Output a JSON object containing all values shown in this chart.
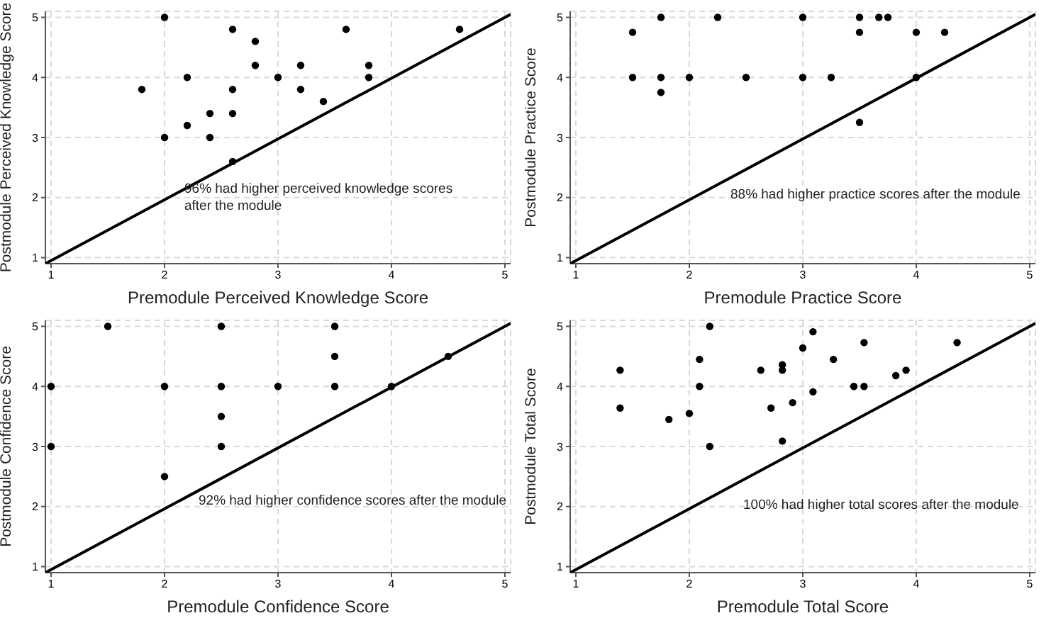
{
  "chart_data": [
    {
      "type": "scatter",
      "xlabel": "Premodule Perceived Knowledge Score",
      "ylabel": "Postmodule Perceived Knowledge Score",
      "xlim": [
        0.95,
        5.05
      ],
      "ylim": [
        0.9,
        5.1
      ],
      "xticks": [
        1,
        2,
        3,
        4,
        5
      ],
      "yticks": [
        1,
        2,
        3,
        4,
        5
      ],
      "grid": true,
      "annotations": [
        "96% had higher perceived knowledge scores after the module"
      ],
      "series": [
        {
          "marker": "circle",
          "color": "#000000",
          "x": [
            1.8,
            2,
            2,
            2.2,
            2.2,
            2.4,
            2.4,
            2.6,
            2.6,
            2.6,
            2.6,
            2.8,
            2.8,
            3,
            3.2,
            3.2,
            3.4,
            3.6,
            3.8,
            3.8,
            4.6
          ],
          "values": [
            3.8,
            5,
            3,
            4,
            3.2,
            3.4,
            3,
            4.8,
            3.8,
            3.4,
            2.6,
            4.6,
            4.2,
            4,
            4.2,
            3.8,
            3.6,
            4.8,
            4.2,
            4,
            4.8
          ]
        },
        {
          "type": "line",
          "color": "#000000",
          "x": [
            0.95,
            5.05
          ],
          "values": [
            0.9,
            5.05
          ]
        }
      ]
    },
    {
      "type": "scatter",
      "xlabel": "Premodule Practice Score",
      "ylabel": "Postmodule Practice Score",
      "xlim": [
        0.95,
        5.05
      ],
      "ylim": [
        0.9,
        5.1
      ],
      "xticks": [
        1,
        2,
        3,
        4,
        5
      ],
      "yticks": [
        1,
        2,
        3,
        4,
        5
      ],
      "grid": true,
      "annotations": [
        "88% had higher practice scores after the module"
      ],
      "series": [
        {
          "marker": "circle",
          "color": "#000000",
          "x": [
            1.5,
            1.5,
            1.75,
            1.75,
            1.75,
            2,
            2.25,
            2.5,
            3,
            3,
            3.25,
            3.5,
            3.5,
            3.5,
            3.67,
            3.75,
            4,
            4,
            4.25
          ],
          "values": [
            4.75,
            4,
            5,
            4,
            3.75,
            4,
            5,
            4,
            5,
            4,
            4,
            5,
            4.75,
            3.25,
            5,
            5,
            4.75,
            4,
            4.75
          ]
        },
        {
          "type": "line",
          "color": "#000000",
          "x": [
            0.95,
            5.05
          ],
          "values": [
            0.9,
            5.05
          ]
        }
      ]
    },
    {
      "type": "scatter",
      "xlabel": "Premodule Confidence Score",
      "ylabel": "Postmodule Confidence Score",
      "xlim": [
        0.95,
        5.05
      ],
      "ylim": [
        0.9,
        5.1
      ],
      "xticks": [
        1,
        2,
        3,
        4,
        5
      ],
      "yticks": [
        1,
        2,
        3,
        4,
        5
      ],
      "grid": true,
      "annotations": [
        "92% had higher confidence scores after the module"
      ],
      "series": [
        {
          "marker": "circle",
          "color": "#000000",
          "x": [
            1,
            1,
            1.5,
            2,
            2,
            2.5,
            2.5,
            2.5,
            2.5,
            3,
            3.5,
            3.5,
            3.5,
            4,
            4.5
          ],
          "values": [
            4,
            3,
            5,
            4,
            2.5,
            5,
            4,
            3.5,
            3,
            4,
            5,
            4.5,
            4,
            4,
            4.5
          ]
        },
        {
          "type": "line",
          "color": "#000000",
          "x": [
            0.95,
            5.05
          ],
          "values": [
            0.9,
            5.05
          ]
        }
      ]
    },
    {
      "type": "scatter",
      "xlabel": "Premodule Total Score",
      "ylabel": "Postmodule Total Score",
      "xlim": [
        0.95,
        5.05
      ],
      "ylim": [
        0.9,
        5.1
      ],
      "xticks": [
        1,
        2,
        3,
        4,
        5
      ],
      "yticks": [
        1,
        2,
        3,
        4,
        5
      ],
      "grid": true,
      "annotations": [
        "100% had higher total scores after the module"
      ],
      "series": [
        {
          "marker": "circle",
          "color": "#000000",
          "x": [
            1.39,
            1.39,
            1.82,
            2,
            2.09,
            2.09,
            2.18,
            2.18,
            2.63,
            2.72,
            2.82,
            2.82,
            2.82,
            2.91,
            3,
            3.09,
            3.09,
            3.27,
            3.45,
            3.54,
            3.54,
            3.82,
            3.91,
            4.36
          ],
          "values": [
            4.27,
            3.64,
            3.45,
            3.55,
            4.45,
            4,
            5,
            3,
            4.27,
            3.64,
            4.36,
            4.27,
            3.09,
            3.73,
            4.64,
            4.91,
            3.91,
            4.45,
            4,
            4.73,
            4,
            4.18,
            4.27,
            4.73
          ]
        },
        {
          "type": "line",
          "color": "#000000",
          "x": [
            0.95,
            5.05
          ],
          "values": [
            0.9,
            5.05
          ]
        }
      ]
    }
  ]
}
